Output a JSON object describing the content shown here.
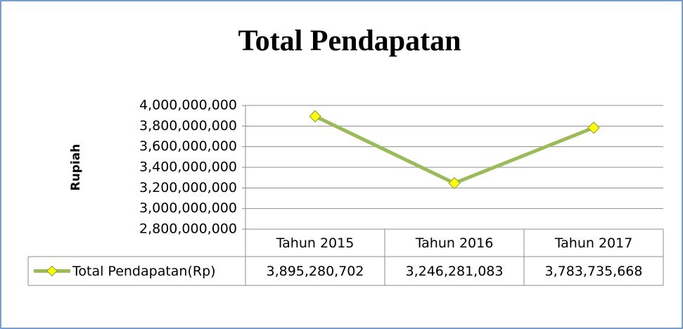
{
  "chart_data": {
    "type": "line",
    "title": "Total Pendapatan",
    "y_label": "Rupiah",
    "categories": [
      "Tahun 2015",
      "Tahun 2016",
      "Tahun 2017"
    ],
    "series": [
      {
        "name": "Total Pendapatan(Rp)",
        "color": "#9bbb59",
        "marker_color": "#ffff00",
        "values": [
          3895280702,
          3246281083,
          3783735668
        ],
        "value_labels": [
          "3,895,280,702",
          "3,246,281,083",
          "3,783,735,668"
        ]
      }
    ],
    "ylim": [
      2800000000,
      4000000000
    ],
    "yticks": [
      {
        "value": 2800000000,
        "label": "2,800,000,000"
      },
      {
        "value": 3000000000,
        "label": "3,000,000,000"
      },
      {
        "value": 3200000000,
        "label": "3,200,000,000"
      },
      {
        "value": 3400000000,
        "label": "3,400,000,000"
      },
      {
        "value": 3600000000,
        "label": "3,600,000,000"
      },
      {
        "value": 3800000000,
        "label": "3,800,000,000"
      },
      {
        "value": 4000000000,
        "label": "4,000,000,000"
      }
    ],
    "grid": true,
    "data_table": true
  }
}
